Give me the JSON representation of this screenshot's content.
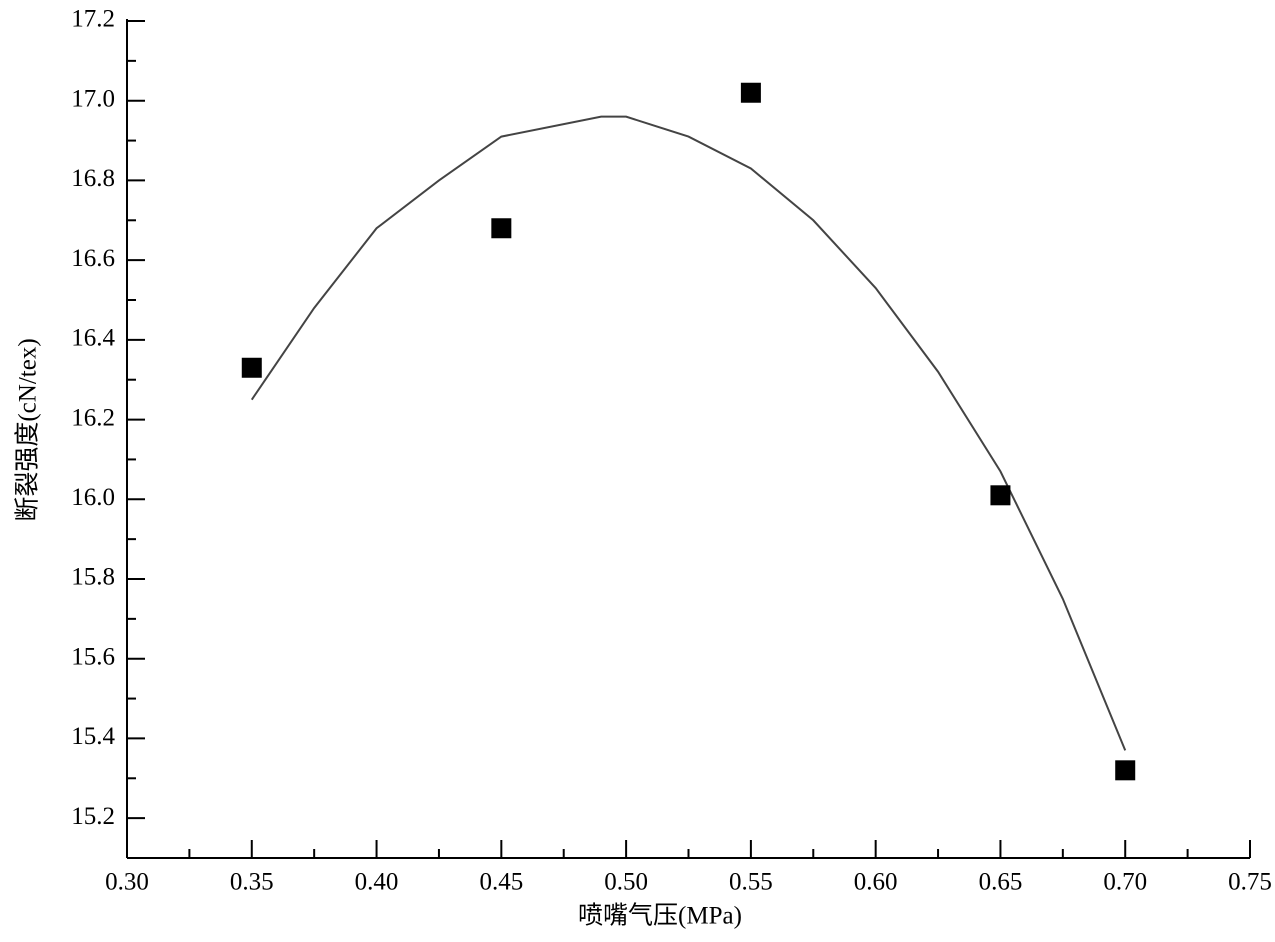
{
  "chart_data": {
    "type": "scatter",
    "x_label": "喷嘴气压(MPa)",
    "y_label": "断裂强度(cN/tex)",
    "x": [
      0.35,
      0.45,
      0.55,
      0.65,
      0.7
    ],
    "values": [
      16.33,
      16.68,
      17.02,
      16.01,
      15.32
    ],
    "color": "#000000",
    "fit": {
      "x": [
        0.35,
        0.375,
        0.4,
        0.425,
        0.45,
        0.49,
        0.5,
        0.525,
        0.55,
        0.575,
        0.6,
        0.625,
        0.65,
        0.675,
        0.7
      ],
      "values": [
        16.25,
        16.48,
        16.68,
        16.8,
        16.91,
        16.96,
        16.96,
        16.91,
        16.83,
        16.7,
        16.53,
        16.32,
        16.07,
        15.75,
        15.37
      ],
      "color": "#444444"
    },
    "xlim": [
      0.3,
      0.75
    ],
    "ylim": [
      15.1,
      17.2
    ],
    "xticks": [
      {
        "value": 0.3,
        "label": "0.30"
      },
      {
        "value": 0.35,
        "label": "0.35"
      },
      {
        "value": 0.4,
        "label": "0.40"
      },
      {
        "value": 0.45,
        "label": "0.45"
      },
      {
        "value": 0.5,
        "label": "0.50"
      },
      {
        "value": 0.55,
        "label": "0.55"
      },
      {
        "value": 0.6,
        "label": "0.60"
      },
      {
        "value": 0.65,
        "label": "0.65"
      },
      {
        "value": 0.7,
        "label": "0.70"
      },
      {
        "value": 0.75,
        "label": "0.75"
      }
    ],
    "yticks": [
      15.2,
      15.4,
      15.6,
      15.8,
      {
        "value": 16.0,
        "label": "16.0"
      },
      16.2,
      16.4,
      16.6,
      16.8,
      {
        "value": 17.0,
        "label": "17.0"
      },
      17.2
    ]
  }
}
